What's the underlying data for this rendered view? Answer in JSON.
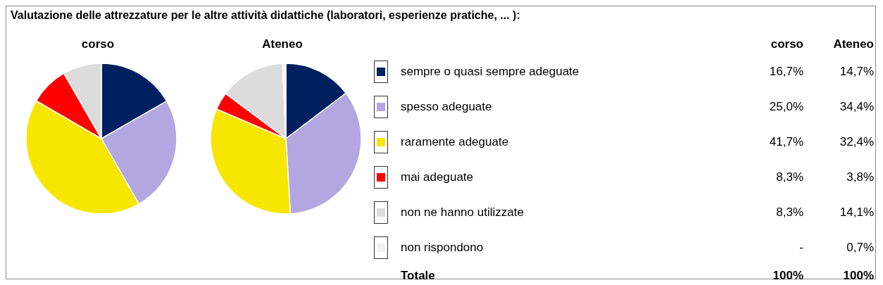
{
  "chart_data": {
    "type": "pie",
    "title": "Valutazione delle attrezzature per le altre attività didattiche (laboratori, esperienze pratiche, ... ):",
    "annotations": [
      "Totale",
      "100%",
      "100%"
    ],
    "legend": "right",
    "categories": [
      "sempre o quasi sempre adeguate",
      "spesso adeguate",
      "raramente adeguate",
      "mai adeguate",
      "non ne hanno utilizzate",
      "non rispondono"
    ],
    "colors": [
      "#002060",
      "#b3a7e1",
      "#f7e600",
      "#ff0000",
      "#dcdcdc",
      "#f2f2f2"
    ],
    "series": [
      {
        "name": "corso",
        "values": [
          16.7,
          25.0,
          41.7,
          8.3,
          8.3,
          0
        ],
        "value_labels": [
          "16,7%",
          "25,0%",
          "41,7%",
          "8,3%",
          "8,3%",
          "-"
        ]
      },
      {
        "name": "Ateneo",
        "values": [
          14.7,
          34.4,
          32.4,
          3.8,
          14.1,
          0.7
        ],
        "value_labels": [
          "14,7%",
          "34,4%",
          "32,4%",
          "3,8%",
          "14,1%",
          "0,7%"
        ]
      }
    ]
  }
}
